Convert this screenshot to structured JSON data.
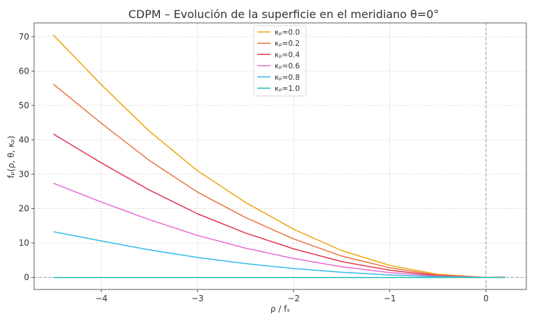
{
  "chart_data": {
    "type": "line",
    "title": "CDPM – Evolución de la superficie en el meridiano θ=0°",
    "xlabel": "ρ / fₛ",
    "ylabel": "fₚ(ρ, θ, κₚ)",
    "xlim": [
      -4.7,
      0.42
    ],
    "ylim": [
      -3.5,
      74
    ],
    "xticks": [
      -4,
      -3,
      -2,
      -1,
      0
    ],
    "xtick_labels": [
      "−4",
      "−3",
      "−2",
      "−1",
      "0"
    ],
    "yticks": [
      0,
      10,
      20,
      30,
      40,
      50,
      60,
      70
    ],
    "ytick_labels": [
      "0",
      "10",
      "20",
      "30",
      "40",
      "50",
      "60",
      "70"
    ],
    "grid": true,
    "legend_position": "top-center",
    "reference_lines": {
      "x": 0,
      "y": 0
    },
    "x": [
      -4.5,
      -4.0,
      -3.5,
      -3.0,
      -2.5,
      -2.0,
      -1.5,
      -1.0,
      -0.5,
      0.0,
      0.2
    ],
    "series": [
      {
        "name": "κₚ=0.0",
        "color": "#f0a30a",
        "values": [
          70.5,
          56.0,
          42.5,
          31.0,
          21.8,
          14.0,
          7.8,
          3.5,
          0.9,
          0.0,
          0.1
        ]
      },
      {
        "name": "κₚ=0.2",
        "color": "#e8743b",
        "values": [
          56.2,
          44.8,
          34.0,
          24.8,
          17.4,
          11.2,
          6.2,
          2.8,
          0.7,
          0.0,
          0.1
        ]
      },
      {
        "name": "κₚ=0.4",
        "color": "#e0344c",
        "values": [
          41.7,
          33.3,
          25.4,
          18.5,
          12.9,
          8.3,
          4.6,
          2.1,
          0.5,
          0.0,
          0.05
        ]
      },
      {
        "name": "κₚ=0.6",
        "color": "#ea67d1",
        "values": [
          27.4,
          21.9,
          16.8,
          12.2,
          8.5,
          5.5,
          3.1,
          1.4,
          0.35,
          0.0,
          0.03
        ]
      },
      {
        "name": "κₚ=0.8",
        "color": "#2fbbe8",
        "values": [
          13.3,
          10.6,
          8.0,
          5.8,
          4.0,
          2.6,
          1.5,
          0.7,
          0.2,
          0.0,
          0.02
        ]
      },
      {
        "name": "κₚ=1.0",
        "color": "#1fbfb1",
        "values": [
          0.0,
          0.0,
          0.0,
          0.0,
          0.0,
          0.0,
          0.0,
          0.0,
          0.0,
          0.0,
          0.0
        ]
      }
    ]
  }
}
